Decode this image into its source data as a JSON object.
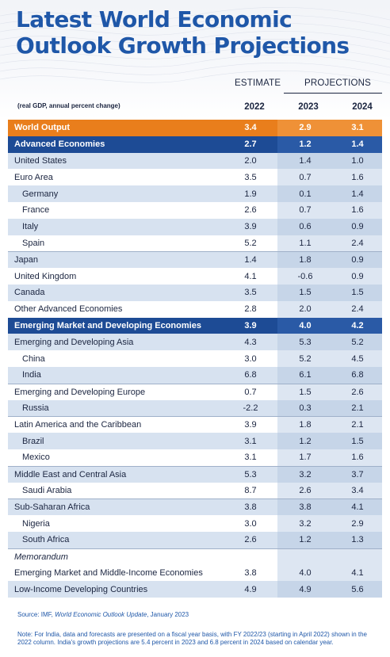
{
  "title": "Latest World Economic Outlook Growth Projections",
  "header": {
    "estimate_label": "ESTIMATE",
    "projections_label": "PROJECTIONS",
    "subtitle": "(real GDP, annual percent change)",
    "years": [
      "2022",
      "2023",
      "2024"
    ]
  },
  "rows": [
    {
      "label": "World Output",
      "values": [
        "3.4",
        "2.9",
        "3.1"
      ]
    },
    {
      "label": "Advanced Economies",
      "values": [
        "2.7",
        "1.2",
        "1.4"
      ]
    },
    {
      "label": "United States",
      "values": [
        "2.0",
        "1.4",
        "1.0"
      ]
    },
    {
      "label": "Euro Area",
      "values": [
        "3.5",
        "0.7",
        "1.6"
      ]
    },
    {
      "label": "Germany",
      "values": [
        "1.9",
        "0.1",
        "1.4"
      ]
    },
    {
      "label": "France",
      "values": [
        "2.6",
        "0.7",
        "1.6"
      ]
    },
    {
      "label": "Italy",
      "values": [
        "3.9",
        "0.6",
        "0.9"
      ]
    },
    {
      "label": "Spain",
      "values": [
        "5.2",
        "1.1",
        "2.4"
      ]
    },
    {
      "label": "Japan",
      "values": [
        "1.4",
        "1.8",
        "0.9"
      ]
    },
    {
      "label": "United Kingdom",
      "values": [
        "4.1",
        "-0.6",
        "0.9"
      ]
    },
    {
      "label": "Canada",
      "values": [
        "3.5",
        "1.5",
        "1.5"
      ]
    },
    {
      "label": "Other Advanced Economies",
      "values": [
        "2.8",
        "2.0",
        "2.4"
      ]
    },
    {
      "label": "Emerging Market and Developing Economies",
      "values": [
        "3.9",
        "4.0",
        "4.2"
      ]
    },
    {
      "label": "Emerging and Developing Asia",
      "values": [
        "4.3",
        "5.3",
        "5.2"
      ]
    },
    {
      "label": "China",
      "values": [
        "3.0",
        "5.2",
        "4.5"
      ]
    },
    {
      "label": "India",
      "values": [
        "6.8",
        "6.1",
        "6.8"
      ]
    },
    {
      "label": "Emerging and Developing Europe",
      "values": [
        "0.7",
        "1.5",
        "2.6"
      ]
    },
    {
      "label": "Russia",
      "values": [
        "-2.2",
        "0.3",
        "2.1"
      ]
    },
    {
      "label": "Latin America and the Caribbean",
      "values": [
        "3.9",
        "1.8",
        "2.1"
      ]
    },
    {
      "label": "Brazil",
      "values": [
        "3.1",
        "1.2",
        "1.5"
      ]
    },
    {
      "label": "Mexico",
      "values": [
        "3.1",
        "1.7",
        "1.6"
      ]
    },
    {
      "label": "Middle East and Central Asia",
      "values": [
        "5.3",
        "3.2",
        "3.7"
      ]
    },
    {
      "label": "Saudi Arabia",
      "values": [
        "8.7",
        "2.6",
        "3.4"
      ]
    },
    {
      "label": "Sub-Saharan Africa",
      "values": [
        "3.8",
        "3.8",
        "4.1"
      ]
    },
    {
      "label": "Nigeria",
      "values": [
        "3.0",
        "3.2",
        "2.9"
      ]
    },
    {
      "label": "South Africa",
      "values": [
        "2.6",
        "1.2",
        "1.3"
      ]
    },
    {
      "label": "Memorandum",
      "values": [
        "",
        "",
        ""
      ]
    },
    {
      "label": "Emerging Market and Middle-Income Economies",
      "values": [
        "3.8",
        "4.0",
        "4.1"
      ]
    },
    {
      "label": "Low-Income Developing Countries",
      "values": [
        "4.9",
        "4.9",
        "5.6"
      ]
    }
  ],
  "source": {
    "prefix": "Source: IMF, ",
    "publication": "World Economic Outlook Update",
    "suffix": ", January 2023"
  },
  "note": "Note: For India, data and forecasts are presented on a fiscal year basis, with FY 2022/23 (starting in April 2022) shown in the 2022 column. India's growth projections are 5.4 percent in 2023 and 6.8 percent in 2024 based on calendar year.",
  "colors": {
    "title": "#1f57a8",
    "highlight_orange": "#e97e1c",
    "highlight_navy": "#1d4b95",
    "row_light": "#d7e2f0"
  }
}
